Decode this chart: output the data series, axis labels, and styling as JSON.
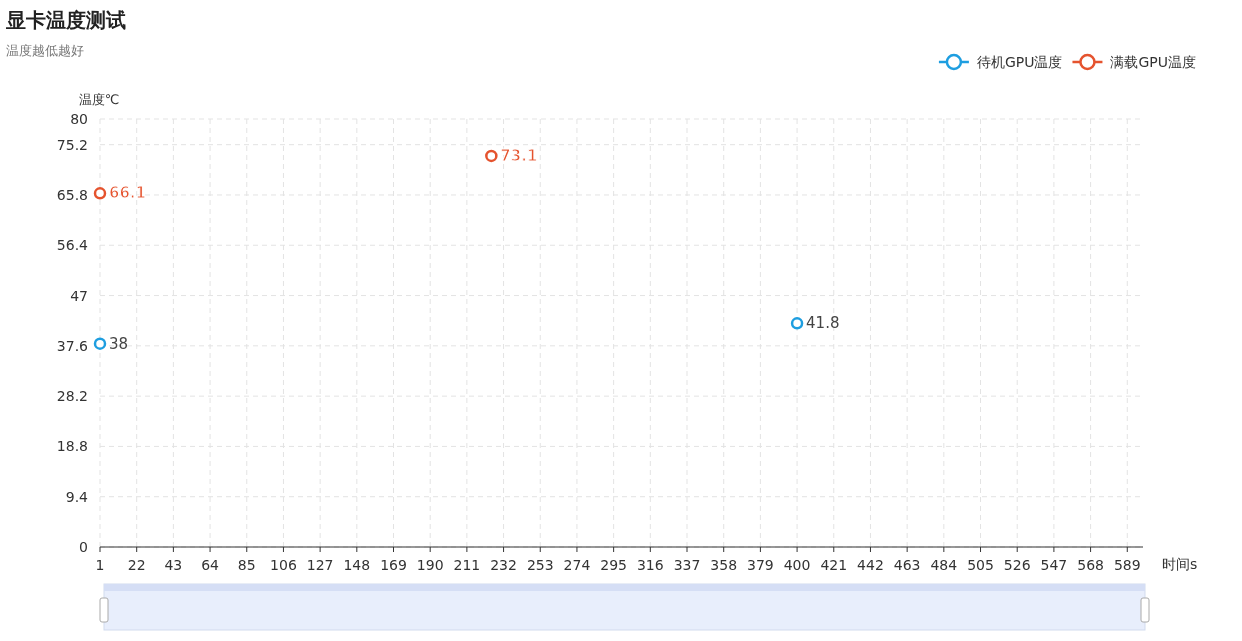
{
  "chart_data": {
    "type": "scatter",
    "title": "显卡温度测试",
    "subtitle": "温度越低越好",
    "xlabel": "时间s",
    "ylabel": "温度℃",
    "xlim": [
      1,
      598
    ],
    "xticks": [
      1,
      22,
      43,
      64,
      85,
      106,
      127,
      148,
      169,
      190,
      211,
      232,
      253,
      274,
      295,
      316,
      337,
      358,
      379,
      400,
      421,
      442,
      463,
      484,
      505,
      526,
      547,
      568,
      589
    ],
    "ylim": [
      0,
      80
    ],
    "yticks": [
      0,
      9.4,
      18.8,
      28.2,
      37.6,
      47,
      56.4,
      65.8,
      75.2,
      80
    ],
    "grid": true,
    "legend": "top right",
    "marker": "circle",
    "data_labels": true,
    "series": [
      {
        "name": "待机GPU温度",
        "color": "#1e9ee0",
        "x": [
          1,
          400
        ],
        "values": [
          38,
          41.8
        ]
      },
      {
        "name": "满载GPU温度",
        "color": "#e5532e",
        "x": [
          1,
          225
        ],
        "values": [
          66.1,
          73.1
        ]
      }
    ]
  }
}
